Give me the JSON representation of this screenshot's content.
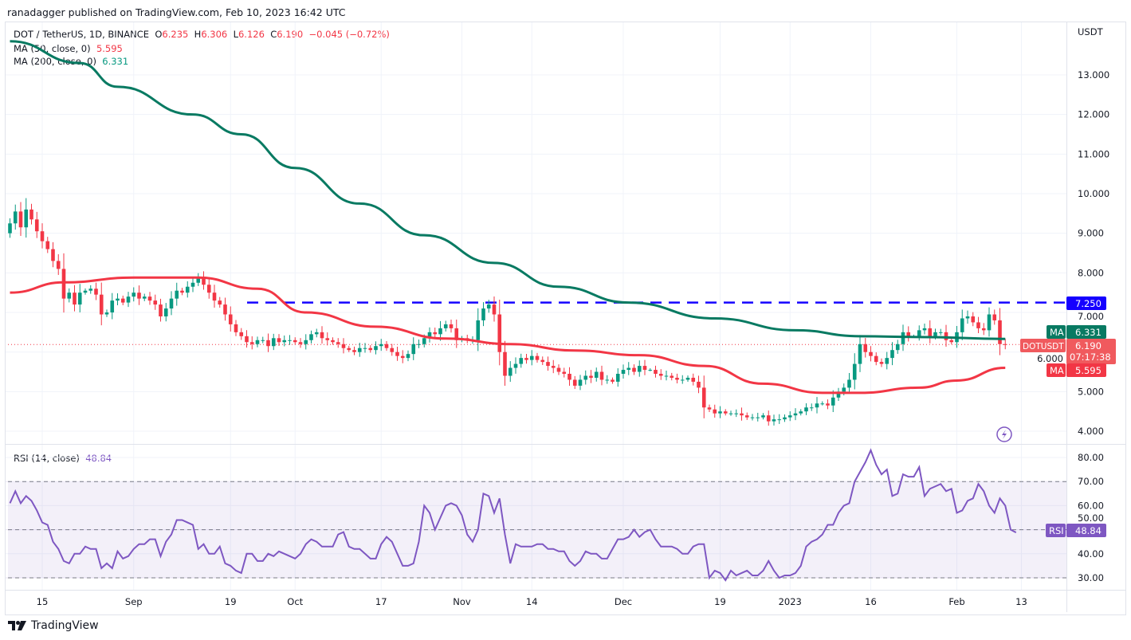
{
  "header": {
    "published": "ranadagger published on TradingView.com, Feb 10, 2023 16:42 UTC"
  },
  "legend": {
    "symbol": "DOT / TetherUS, 1D, BINANCE",
    "o_label": "O",
    "o": "6.235",
    "h_label": "H",
    "h": "6.306",
    "l_label": "L",
    "l": "6.126",
    "c_label": "C",
    "c": "6.190",
    "change": "−0.045 (−0.72%)",
    "ma50_label": "MA (50, close, 0)",
    "ma50_value": "5.595",
    "ma200_label": "MA (200, close, 0)",
    "ma200_value": "6.331",
    "rsi_label": "RSI (14, close)",
    "rsi_value": "48.84"
  },
  "axis": {
    "currency": "USDT",
    "price_ticks": [
      "13.000",
      "12.000",
      "11.000",
      "10.000",
      "9.000",
      "8.000",
      "7.000",
      "6.000",
      "5.000",
      "4.000"
    ],
    "rsi_ticks": [
      "80.00",
      "70.00",
      "60.00",
      "50.00",
      "40.00",
      "30.00"
    ],
    "time_ticks": [
      {
        "label": "15",
        "day": 6
      },
      {
        "label": "Sep",
        "day": 23
      },
      {
        "label": "19",
        "day": 41
      },
      {
        "label": "Oct",
        "day": 53
      },
      {
        "label": "17",
        "day": 69
      },
      {
        "label": "Nov",
        "day": 84
      },
      {
        "label": "14",
        "day": 97
      },
      {
        "label": "Dec",
        "day": 114
      },
      {
        "label": "19",
        "day": 132
      },
      {
        "label": "2023",
        "day": 145
      },
      {
        "label": "16",
        "day": 160
      },
      {
        "label": "Feb",
        "day": 176
      },
      {
        "label": "13",
        "day": 188
      }
    ]
  },
  "badges": {
    "resistance": "7.250",
    "ma200_tag": "MA",
    "ma200": "6.331",
    "symbol_tag": "DOTUSDT",
    "price": "6.190",
    "countdown": "07:17:38",
    "ma50_tag": "MA",
    "ma50": "5.595",
    "rsi_tag": "RSI",
    "rsi": "48.84"
  },
  "footer": {
    "brand": "TradingView"
  },
  "colors": {
    "up": "#089981",
    "down": "#f23645",
    "ma50": "#f23645",
    "ma200": "#087a62",
    "rsi": "#7e57c2",
    "resistance": "#1500ff"
  },
  "chart_data": {
    "type": "candlestick",
    "title": "DOT / TetherUS, 1D, BINANCE",
    "x_start": "2022-08-09",
    "x_end": "2023-02-10",
    "ylabel": "USDT",
    "ylim": [
      3.7,
      14.0
    ],
    "resistance_level": 7.25,
    "last_price": 6.19,
    "closes": [
      9.25,
      9.55,
      9.15,
      9.6,
      9.35,
      9.05,
      8.8,
      8.6,
      8.3,
      8.1,
      7.35,
      7.5,
      7.2,
      7.5,
      7.55,
      7.6,
      7.45,
      6.95,
      7.0,
      7.3,
      7.35,
      7.25,
      7.4,
      7.5,
      7.35,
      7.4,
      7.3,
      7.2,
      6.9,
      7.1,
      7.35,
      7.55,
      7.5,
      7.65,
      7.75,
      7.9,
      7.7,
      7.5,
      7.3,
      7.2,
      6.95,
      6.7,
      6.5,
      6.4,
      6.25,
      6.2,
      6.3,
      6.3,
      6.15,
      6.35,
      6.25,
      6.3,
      6.3,
      6.25,
      6.2,
      6.3,
      6.45,
      6.5,
      6.35,
      6.3,
      6.25,
      6.2,
      6.1,
      6.05,
      6.0,
      6.1,
      6.1,
      6.05,
      6.15,
      6.2,
      6.1,
      6.0,
      5.9,
      5.85,
      5.95,
      6.2,
      6.2,
      6.35,
      6.5,
      6.45,
      6.6,
      6.7,
      6.6,
      6.3,
      6.35,
      6.3,
      6.3,
      6.8,
      7.1,
      7.2,
      6.95,
      6.0,
      5.4,
      5.6,
      5.7,
      5.85,
      5.8,
      5.9,
      5.8,
      5.75,
      5.65,
      5.6,
      5.5,
      5.45,
      5.3,
      5.15,
      5.3,
      5.4,
      5.35,
      5.5,
      5.3,
      5.3,
      5.25,
      5.45,
      5.55,
      5.6,
      5.5,
      5.65,
      5.55,
      5.55,
      5.45,
      5.4,
      5.4,
      5.35,
      5.3,
      5.3,
      5.35,
      5.25,
      5.1,
      4.6,
      4.55,
      4.45,
      4.5,
      4.45,
      4.45,
      4.45,
      4.4,
      4.35,
      4.35,
      4.35,
      4.4,
      4.25,
      4.3,
      4.3,
      4.35,
      4.4,
      4.45,
      4.5,
      4.6,
      4.6,
      4.7,
      4.7,
      4.65,
      4.85,
      5.0,
      5.1,
      5.3,
      5.7,
      6.2,
      6.0,
      5.9,
      5.75,
      5.7,
      5.85,
      6.05,
      6.2,
      6.5,
      6.4,
      6.4,
      6.55,
      6.6,
      6.4,
      6.5,
      6.5,
      6.3,
      6.25,
      6.5,
      6.85,
      6.9,
      6.75,
      6.6,
      6.55,
      6.95,
      6.8,
      6.2,
      6.19
    ],
    "first_open": 9.0,
    "ma200": {
      "day": [
        0,
        13,
        20,
        34,
        43,
        53,
        65,
        77,
        90,
        102,
        115,
        131,
        146,
        158,
        169,
        185
      ],
      "values": [
        13.85,
        13.3,
        12.7,
        12.0,
        11.5,
        10.65,
        9.75,
        8.95,
        8.25,
        7.65,
        7.25,
        6.85,
        6.55,
        6.4,
        6.38,
        6.33
      ]
    },
    "ma50": {
      "day": [
        0,
        10,
        23,
        35,
        46,
        55,
        68,
        81,
        93,
        105,
        117,
        129,
        140,
        151,
        158,
        169,
        176,
        185
      ],
      "values": [
        7.5,
        7.76,
        7.88,
        7.88,
        7.6,
        7.0,
        6.64,
        6.34,
        6.2,
        6.04,
        5.92,
        5.65,
        5.2,
        4.97,
        4.97,
        5.1,
        5.28,
        5.6
      ]
    },
    "rsi": {
      "ylim": [
        25,
        85
      ],
      "levels": [
        70,
        50,
        30
      ],
      "values": [
        61,
        66,
        61,
        64,
        62,
        58,
        53,
        52,
        45,
        42,
        37,
        36,
        40,
        40,
        43,
        42,
        42,
        34,
        36,
        34,
        41,
        38,
        39,
        42,
        44,
        44,
        46,
        46,
        39,
        45,
        48,
        54,
        54,
        53,
        52,
        42,
        44,
        40,
        40,
        43,
        36,
        35,
        33,
        32,
        40,
        40,
        37,
        37,
        40,
        39,
        41,
        40,
        39,
        38,
        40,
        44,
        46,
        45,
        43,
        43,
        43,
        48,
        49,
        43,
        42,
        42,
        40,
        38,
        38,
        44,
        47,
        45,
        40,
        35,
        35,
        36,
        45,
        60,
        57,
        50,
        55,
        60,
        61,
        60,
        56,
        48,
        45,
        50,
        65,
        64,
        57,
        63,
        48,
        36,
        44,
        43,
        43,
        43,
        44,
        44,
        42,
        42,
        41,
        41,
        37,
        35,
        37,
        41,
        40,
        40,
        38,
        38,
        42,
        46,
        46,
        47,
        50,
        47,
        49,
        50,
        46,
        43,
        43,
        43,
        42,
        40,
        40,
        43,
        44,
        44,
        30,
        33,
        32,
        29,
        33,
        31,
        32,
        33,
        31,
        31,
        33,
        37,
        33,
        30,
        31,
        31,
        32,
        35,
        43,
        45,
        46,
        48,
        52,
        52,
        57,
        60,
        61,
        70,
        74,
        78,
        83,
        77,
        73,
        75,
        64,
        65,
        73,
        72,
        72,
        76,
        64,
        67,
        68,
        69,
        66,
        67,
        57,
        58,
        62,
        63,
        69,
        66,
        60,
        57,
        63,
        60,
        50,
        48.84
      ]
    }
  }
}
